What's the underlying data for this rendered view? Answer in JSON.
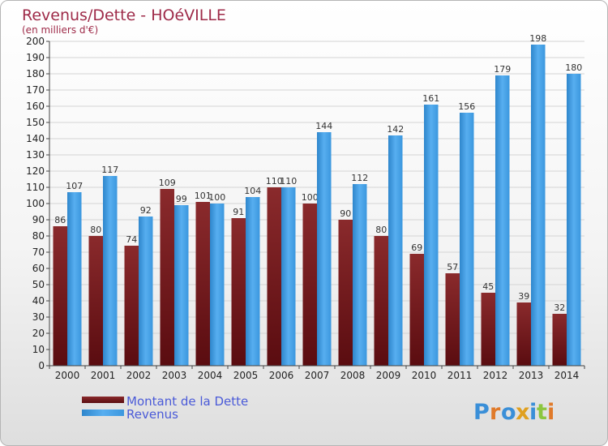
{
  "chart_data": {
    "type": "bar",
    "title": "Revenus/Dette - HOéVILLE",
    "subtitle": "(en milliers d'€)",
    "categories": [
      "2000",
      "2001",
      "2002",
      "2003",
      "2004",
      "2005",
      "2006",
      "2007",
      "2008",
      "2009",
      "2010",
      "2011",
      "2012",
      "2013",
      "2014"
    ],
    "series": [
      {
        "name": "Montant de la Dette",
        "color": "#7a1c1e",
        "values": [
          86,
          80,
          74,
          109,
          101,
          91,
          110,
          100,
          90,
          80,
          69,
          57,
          45,
          39,
          32
        ]
      },
      {
        "name": "Revenus",
        "color": "#3e9be0",
        "values": [
          107,
          117,
          92,
          99,
          100,
          104,
          110,
          144,
          112,
          142,
          161,
          156,
          179,
          198,
          180
        ]
      }
    ],
    "ylim": [
      0,
      200
    ],
    "yticks": [
      0,
      10,
      20,
      30,
      40,
      50,
      60,
      70,
      80,
      90,
      100,
      110,
      120,
      130,
      140,
      150,
      160,
      170,
      180,
      190,
      200
    ],
    "grid": true,
    "legend_position": "bottom-left",
    "logo_text": "Proxiti"
  }
}
